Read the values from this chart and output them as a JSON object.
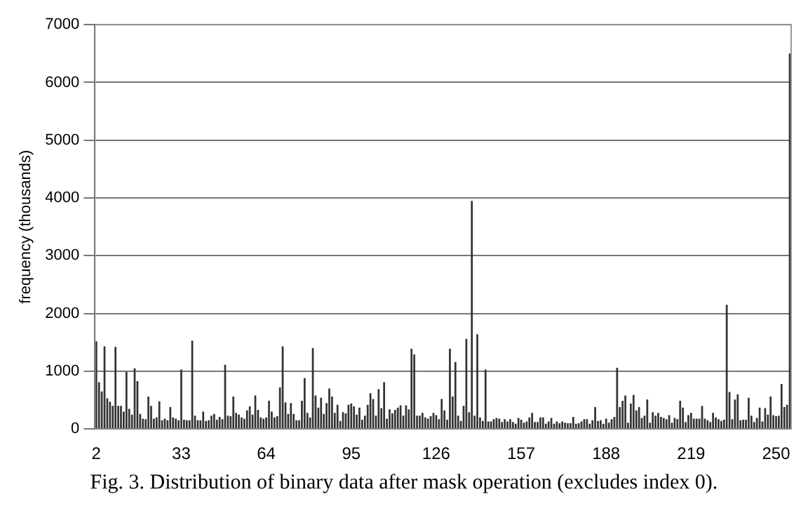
{
  "chart_data": {
    "type": "bar",
    "annotations": [
      "Fig. 3.   Distribution of binary data after mask operation (excludes index 0)."
    ],
    "ylabel": "frequency (thousands)",
    "x": [
      2,
      3,
      4,
      5,
      6,
      7,
      8,
      9,
      10,
      11,
      12,
      13,
      14,
      15,
      16,
      17,
      18,
      19,
      20,
      21,
      22,
      23,
      24,
      25,
      26,
      27,
      28,
      29,
      30,
      31,
      32,
      33,
      34,
      35,
      36,
      37,
      38,
      39,
      40,
      41,
      42,
      43,
      44,
      45,
      46,
      47,
      48,
      49,
      50,
      51,
      52,
      53,
      54,
      55,
      56,
      57,
      58,
      59,
      60,
      61,
      62,
      63,
      64,
      65,
      66,
      67,
      68,
      69,
      70,
      71,
      72,
      73,
      74,
      75,
      76,
      77,
      78,
      79,
      80,
      81,
      82,
      83,
      84,
      85,
      86,
      87,
      88,
      89,
      90,
      91,
      92,
      93,
      94,
      95,
      96,
      97,
      98,
      99,
      100,
      101,
      102,
      103,
      104,
      105,
      106,
      107,
      108,
      109,
      110,
      111,
      112,
      113,
      114,
      115,
      116,
      117,
      118,
      119,
      120,
      121,
      122,
      123,
      124,
      125,
      126,
      127,
      128,
      129,
      130,
      131,
      132,
      133,
      134,
      135,
      136,
      137,
      138,
      139,
      140,
      141,
      142,
      143,
      144,
      145,
      146,
      147,
      148,
      149,
      150,
      151,
      152,
      153,
      154,
      155,
      156,
      157,
      158,
      159,
      160,
      161,
      162,
      163,
      164,
      165,
      166,
      167,
      168,
      169,
      170,
      171,
      172,
      173,
      174,
      175,
      176,
      177,
      178,
      179,
      180,
      181,
      182,
      183,
      184,
      185,
      186,
      187,
      188,
      189,
      190,
      191,
      192,
      193,
      194,
      195,
      196,
      197,
      198,
      199,
      200,
      201,
      202,
      203,
      204,
      205,
      206,
      207,
      208,
      209,
      210,
      211,
      212,
      213,
      214,
      215,
      216,
      217,
      218,
      219,
      220,
      221,
      222,
      223,
      224,
      225,
      226,
      227,
      228,
      229,
      230,
      231,
      232,
      233,
      234,
      235,
      236,
      237,
      238,
      239,
      240,
      241,
      242,
      243,
      244,
      245,
      246,
      247,
      248,
      249,
      250,
      251,
      252,
      253,
      254,
      255
    ],
    "values": [
      1520,
      810,
      650,
      1430,
      530,
      470,
      400,
      1420,
      400,
      400,
      300,
      990,
      350,
      250,
      1050,
      830,
      260,
      180,
      170,
      560,
      400,
      180,
      200,
      480,
      150,
      180,
      150,
      380,
      200,
      180,
      150,
      1030,
      160,
      150,
      150,
      1530,
      230,
      150,
      150,
      300,
      140,
      150,
      230,
      260,
      160,
      210,
      170,
      1110,
      230,
      220,
      560,
      280,
      250,
      200,
      180,
      320,
      390,
      250,
      580,
      330,
      200,
      180,
      200,
      490,
      300,
      200,
      220,
      720,
      1430,
      460,
      260,
      450,
      260,
      150,
      150,
      490,
      880,
      280,
      200,
      1400,
      580,
      370,
      540,
      260,
      450,
      700,
      560,
      280,
      420,
      140,
      290,
      270,
      420,
      440,
      390,
      250,
      370,
      160,
      230,
      420,
      620,
      520,
      230,
      690,
      360,
      810,
      180,
      340,
      270,
      330,
      370,
      410,
      230,
      410,
      340,
      1390,
      1290,
      230,
      230,
      280,
      200,
      180,
      220,
      280,
      240,
      170,
      520,
      320,
      160,
      1390,
      560,
      1160,
      230,
      140,
      400,
      1560,
      290,
      3950,
      230,
      1640,
      200,
      140,
      1030,
      130,
      130,
      170,
      190,
      180,
      120,
      170,
      130,
      170,
      120,
      90,
      190,
      160,
      110,
      130,
      200,
      280,
      120,
      120,
      200,
      200,
      90,
      130,
      190,
      90,
      130,
      100,
      130,
      110,
      100,
      100,
      210,
      90,
      100,
      130,
      170,
      170,
      90,
      150,
      380,
      140,
      150,
      90,
      180,
      110,
      170,
      210,
      1060,
      380,
      490,
      580,
      110,
      440,
      590,
      320,
      380,
      190,
      230,
      510,
      110,
      290,
      230,
      280,
      210,
      190,
      170,
      240,
      110,
      190,
      170,
      490,
      370,
      120,
      240,
      280,
      180,
      180,
      180,
      400,
      180,
      150,
      120,
      280,
      200,
      170,
      140,
      160,
      2150,
      640,
      170,
      510,
      600,
      150,
      160,
      160,
      540,
      230,
      120,
      190,
      370,
      130,
      360,
      250,
      560,
      240,
      220,
      230,
      780,
      380,
      420,
      6500
    ],
    "color": "#333333",
    "xlim": [
      1.5,
      255.5
    ],
    "xticks": [
      2,
      33,
      64,
      95,
      126,
      157,
      188,
      219,
      250
    ],
    "ylim": [
      0,
      7000
    ],
    "yticks": [
      0,
      1000,
      2000,
      3000,
      4000,
      5000,
      6000,
      7000
    ],
    "grid": "y"
  }
}
